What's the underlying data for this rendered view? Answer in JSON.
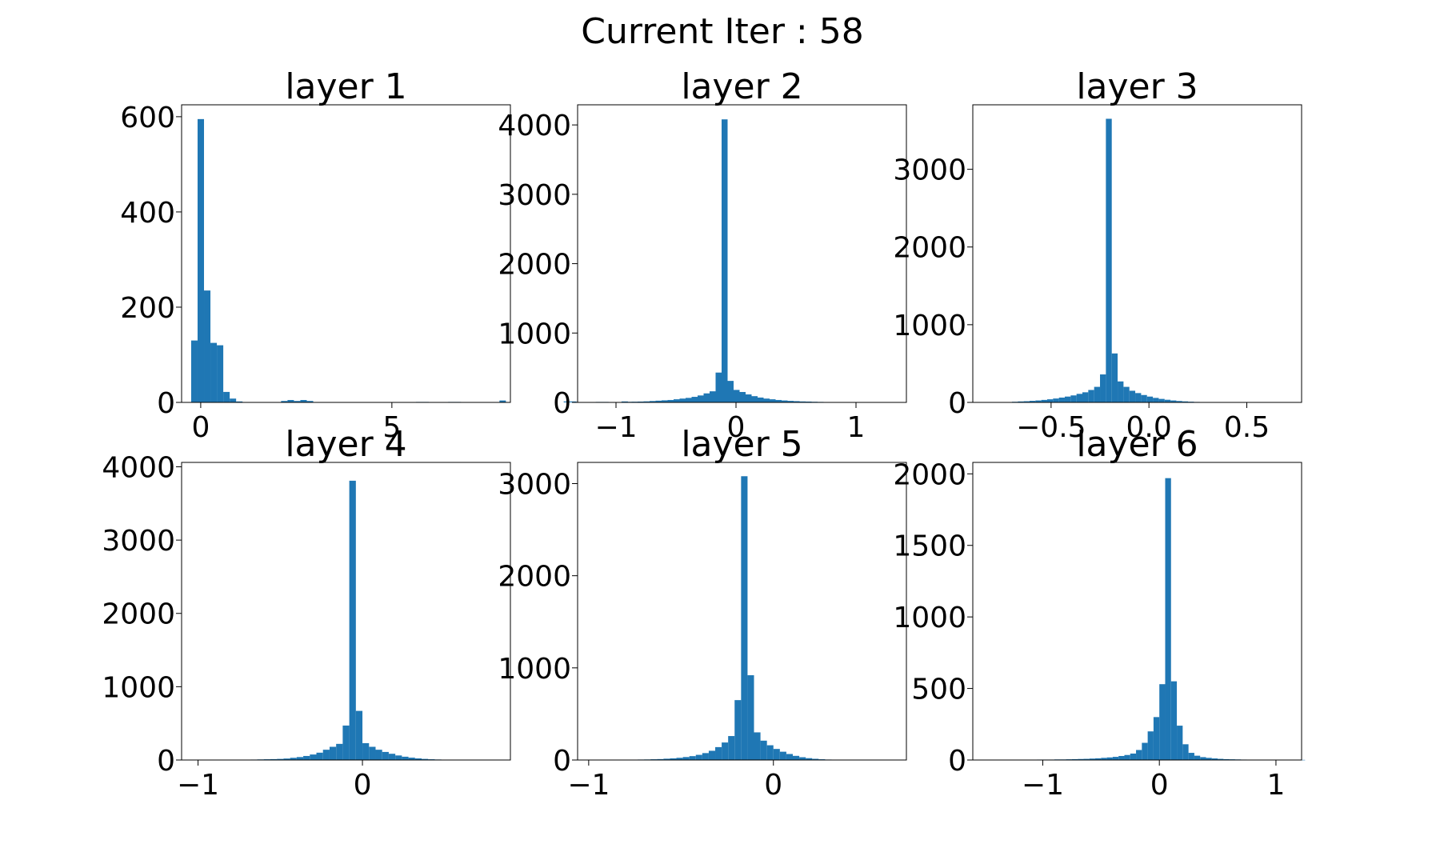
{
  "figure": {
    "suptitle": "Current Iter : 58"
  },
  "colors": {
    "bar": "#1f77b4",
    "axes": "#000000",
    "background": "#ffffff"
  },
  "chart_data": [
    {
      "type": "bar",
      "title": "layer 1",
      "xlabel": "",
      "ylabel": "",
      "xlim": [
        -0.5,
        8.1
      ],
      "ylim": [
        0,
        625
      ],
      "xticks": [
        0,
        5
      ],
      "xtick_labels": [
        "0",
        "5"
      ],
      "yticks": [
        0,
        200,
        400,
        600
      ],
      "ytick_labels": [
        "0",
        "200",
        "400",
        "600"
      ],
      "bin_start": -0.25,
      "bin_width": 0.168,
      "values": [
        130,
        595,
        235,
        125,
        120,
        22,
        8,
        2,
        0,
        0,
        0,
        0,
        0,
        0,
        3,
        5,
        3,
        5,
        3,
        0,
        0,
        0,
        0,
        0,
        0,
        0,
        0,
        0,
        0,
        0,
        0,
        0,
        0,
        0,
        0,
        1,
        1,
        0,
        0,
        0,
        1,
        1,
        0,
        0,
        0,
        0,
        0,
        0,
        4,
        0,
        0,
        0,
        0,
        0,
        0,
        0,
        0,
        0,
        2,
        2,
        0,
        0,
        0,
        1,
        1,
        0,
        0,
        2,
        1
      ]
    },
    {
      "type": "bar",
      "title": "layer 2",
      "xlabel": "",
      "ylabel": "",
      "xlim": [
        -1.32,
        1.42
      ],
      "ylim": [
        0,
        4290
      ],
      "xticks": [
        -1,
        0,
        1
      ],
      "xtick_labels": [
        "−1",
        "0",
        "1"
      ],
      "yticks": [
        0,
        1000,
        2000,
        3000,
        4000
      ],
      "ytick_labels": [
        "0",
        "1000",
        "2000",
        "3000",
        "4000"
      ],
      "bin_start": -1.22,
      "bin_width": 0.05,
      "values": [
        2,
        2,
        3,
        3,
        4,
        5,
        8,
        10,
        12,
        15,
        20,
        25,
        30,
        35,
        45,
        55,
        65,
        80,
        100,
        130,
        160,
        430,
        4080,
        310,
        180,
        150,
        115,
        90,
        70,
        55,
        45,
        35,
        28,
        22,
        18,
        14,
        12,
        9,
        7,
        5,
        4,
        3,
        2,
        2,
        1,
        1,
        1
      ]
    },
    {
      "type": "bar",
      "title": "layer 3",
      "xlabel": "",
      "ylabel": "",
      "xlim": [
        -0.9,
        0.78
      ],
      "ylim": [
        0,
        3830
      ],
      "xticks": [
        -0.5,
        0.0,
        0.5
      ],
      "xtick_labels": [
        "−0.5",
        "0.0",
        "0.5"
      ],
      "yticks": [
        0,
        1000,
        2000,
        3000
      ],
      "ytick_labels": [
        "0",
        "1000",
        "2000",
        "3000"
      ],
      "bin_start": -0.82,
      "bin_width": 0.03,
      "values": [
        2,
        3,
        4,
        5,
        8,
        12,
        15,
        20,
        25,
        32,
        40,
        50,
        62,
        75,
        90,
        110,
        130,
        160,
        200,
        360,
        3650,
        630,
        270,
        200,
        150,
        120,
        95,
        75,
        58,
        45,
        34,
        25,
        18,
        13,
        9,
        6,
        4,
        3,
        2,
        1,
        1
      ]
    },
    {
      "type": "bar",
      "title": "layer 4",
      "xlabel": "",
      "ylabel": "",
      "xlim": [
        -1.1,
        0.9
      ],
      "ylim": [
        0,
        4060
      ],
      "xticks": [
        -1,
        0
      ],
      "xtick_labels": [
        "−1",
        "0"
      ],
      "yticks": [
        0,
        1000,
        2000,
        3000,
        4000
      ],
      "ytick_labels": [
        "0",
        "1000",
        "2000",
        "3000",
        "4000"
      ],
      "bin_start": -1.0,
      "bin_width": 0.04,
      "values": [
        1,
        1,
        1,
        2,
        2,
        3,
        4,
        5,
        6,
        8,
        10,
        12,
        15,
        20,
        30,
        40,
        55,
        75,
        100,
        140,
        180,
        220,
        470,
        3810,
        670,
        230,
        180,
        140,
        110,
        85,
        62,
        45,
        32,
        22,
        15,
        10,
        7,
        5,
        3,
        2,
        1,
        1
      ]
    },
    {
      "type": "bar",
      "title": "layer 5",
      "xlabel": "",
      "ylabel": "",
      "xlim": [
        -1.06,
        0.72
      ],
      "ylim": [
        0,
        3230
      ],
      "xticks": [
        -1,
        0
      ],
      "xtick_labels": [
        "−1",
        "0"
      ],
      "yticks": [
        0,
        1000,
        2000,
        3000
      ],
      "ytick_labels": [
        "0",
        "1000",
        "2000",
        "3000"
      ],
      "bin_start": -0.98,
      "bin_width": 0.035,
      "values": [
        1,
        1,
        1,
        2,
        2,
        3,
        4,
        5,
        6,
        8,
        10,
        14,
        18,
        24,
        32,
        42,
        56,
        75,
        100,
        140,
        190,
        260,
        650,
        3080,
        920,
        300,
        210,
        160,
        120,
        90,
        65,
        45,
        30,
        20,
        13,
        8,
        5,
        3,
        2,
        1
      ]
    },
    {
      "type": "bar",
      "title": "layer 6",
      "xlabel": "",
      "ylabel": "",
      "xlim": [
        -1.6,
        1.22
      ],
      "ylim": [
        0,
        2080
      ],
      "xticks": [
        -1,
        0,
        1
      ],
      "xtick_labels": [
        "−1",
        "0",
        "1"
      ],
      "yticks": [
        0,
        500,
        1000,
        1500,
        2000
      ],
      "ytick_labels": [
        "0",
        "500",
        "1000",
        "1500",
        "2000"
      ],
      "bin_start": -1.5,
      "bin_width": 0.05,
      "values": [
        1,
        1,
        1,
        1,
        1,
        1,
        2,
        2,
        2,
        3,
        3,
        3,
        4,
        4,
        5,
        6,
        7,
        8,
        10,
        12,
        15,
        18,
        22,
        28,
        35,
        45,
        70,
        120,
        200,
        300,
        530,
        1970,
        550,
        240,
        110,
        50,
        30,
        20,
        15,
        11,
        8,
        6,
        5,
        4,
        3,
        2,
        2,
        2,
        1,
        1,
        1,
        1,
        1,
        1,
        1
      ]
    }
  ]
}
